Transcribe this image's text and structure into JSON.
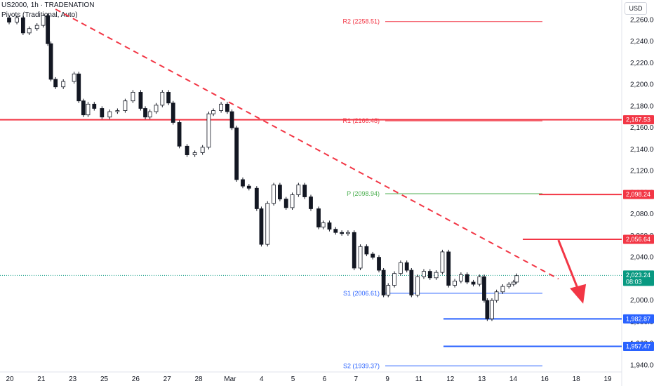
{
  "header": {
    "symbol": "US2000, 1h · TRADENATION",
    "indicator": "Pivots (Traditional, Auto)"
  },
  "currency": "USD",
  "chart_data": {
    "type": "candlestick",
    "y_axis": {
      "min": 1935,
      "max": 2272,
      "ticks": [
        1940,
        1960,
        1980,
        2000,
        2020,
        2040,
        2060,
        2080,
        2100,
        2120,
        2140,
        2160,
        2180,
        2200,
        2220,
        2240,
        2260
      ],
      "tick_labels": [
        "1,940.00",
        "1,960.00",
        "1,980.00",
        "2,000.00",
        "2,020.00",
        "2,040.00",
        "2,060.00",
        "2,080.00",
        "2,100.00",
        "2,120.00",
        "2,140.00",
        "2,160.00",
        "2,180.00",
        "2,200.00",
        "2,220.00",
        "2,240.00",
        "2,260.00"
      ]
    },
    "x_axis": {
      "labels": [
        "20",
        "21",
        "23",
        "25",
        "26",
        "27",
        "28",
        "Mar",
        "4",
        "5",
        "6",
        "7",
        "9",
        "11",
        "12",
        "13",
        "14",
        "16",
        "18",
        "19"
      ]
    },
    "price_series": [
      {
        "t": 0.0,
        "p": 2262
      },
      {
        "t": 0.5,
        "p": 2258
      },
      {
        "t": 1.0,
        "p": 2262
      },
      {
        "t": 1.4,
        "p": 2248
      },
      {
        "t": 1.8,
        "p": 2252
      },
      {
        "t": 2.3,
        "p": 2255
      },
      {
        "t": 2.7,
        "p": 2264
      },
      {
        "t": 3.0,
        "p": 2238
      },
      {
        "t": 3.2,
        "p": 2205
      },
      {
        "t": 3.5,
        "p": 2198
      },
      {
        "t": 4.0,
        "p": 2203
      },
      {
        "t": 4.7,
        "p": 2210
      },
      {
        "t": 5.0,
        "p": 2185
      },
      {
        "t": 5.3,
        "p": 2172
      },
      {
        "t": 5.6,
        "p": 2182
      },
      {
        "t": 6.0,
        "p": 2178
      },
      {
        "t": 6.5,
        "p": 2170
      },
      {
        "t": 7.0,
        "p": 2175
      },
      {
        "t": 7.5,
        "p": 2176
      },
      {
        "t": 8.0,
        "p": 2185
      },
      {
        "t": 8.5,
        "p": 2193
      },
      {
        "t": 9.0,
        "p": 2178
      },
      {
        "t": 9.3,
        "p": 2170
      },
      {
        "t": 9.6,
        "p": 2175
      },
      {
        "t": 10.0,
        "p": 2181
      },
      {
        "t": 10.4,
        "p": 2193
      },
      {
        "t": 10.8,
        "p": 2183
      },
      {
        "t": 11.1,
        "p": 2165
      },
      {
        "t": 11.5,
        "p": 2143
      },
      {
        "t": 12.0,
        "p": 2135
      },
      {
        "t": 12.5,
        "p": 2137
      },
      {
        "t": 13.0,
        "p": 2142
      },
      {
        "t": 13.4,
        "p": 2173
      },
      {
        "t": 13.7,
        "p": 2176
      },
      {
        "t": 14.2,
        "p": 2182
      },
      {
        "t": 14.6,
        "p": 2175
      },
      {
        "t": 14.9,
        "p": 2160
      },
      {
        "t": 15.2,
        "p": 2112
      },
      {
        "t": 15.6,
        "p": 2106
      },
      {
        "t": 16.0,
        "p": 2104
      },
      {
        "t": 16.5,
        "p": 2085
      },
      {
        "t": 16.8,
        "p": 2052
      },
      {
        "t": 17.2,
        "p": 2090
      },
      {
        "t": 17.6,
        "p": 2107
      },
      {
        "t": 18.0,
        "p": 2094
      },
      {
        "t": 18.4,
        "p": 2086
      },
      {
        "t": 18.8,
        "p": 2098
      },
      {
        "t": 19.2,
        "p": 2107
      },
      {
        "t": 19.6,
        "p": 2096
      },
      {
        "t": 20.0,
        "p": 2085
      },
      {
        "t": 20.5,
        "p": 2068
      },
      {
        "t": 20.8,
        "p": 2072
      },
      {
        "t": 21.2,
        "p": 2066
      },
      {
        "t": 21.6,
        "p": 2063
      },
      {
        "t": 22.0,
        "p": 2062
      },
      {
        "t": 22.4,
        "p": 2063
      },
      {
        "t": 22.8,
        "p": 2030
      },
      {
        "t": 23.2,
        "p": 2050
      },
      {
        "t": 23.6,
        "p": 2043
      },
      {
        "t": 24.0,
        "p": 2040
      },
      {
        "t": 24.4,
        "p": 2028
      },
      {
        "t": 24.7,
        "p": 2005
      },
      {
        "t": 25.0,
        "p": 2014
      },
      {
        "t": 25.4,
        "p": 2025
      },
      {
        "t": 25.8,
        "p": 2035
      },
      {
        "t": 26.2,
        "p": 2028
      },
      {
        "t": 26.5,
        "p": 2005
      },
      {
        "t": 26.9,
        "p": 2022
      },
      {
        "t": 27.3,
        "p": 2027
      },
      {
        "t": 27.7,
        "p": 2021
      },
      {
        "t": 28.1,
        "p": 2026
      },
      {
        "t": 28.5,
        "p": 2045
      },
      {
        "t": 28.9,
        "p": 2014
      },
      {
        "t": 29.3,
        "p": 2018
      },
      {
        "t": 29.7,
        "p": 2024
      },
      {
        "t": 30.1,
        "p": 2017
      },
      {
        "t": 30.5,
        "p": 2015
      },
      {
        "t": 30.9,
        "p": 2022
      },
      {
        "t": 31.2,
        "p": 2000
      },
      {
        "t": 31.4,
        "p": 1983
      },
      {
        "t": 31.7,
        "p": 2000
      },
      {
        "t": 32.0,
        "p": 2008
      },
      {
        "t": 32.4,
        "p": 2013
      },
      {
        "t": 32.8,
        "p": 2015
      },
      {
        "t": 33.1,
        "p": 2017
      },
      {
        "t": 33.3,
        "p": 2023
      }
    ],
    "levels": [
      {
        "name": "R2",
        "label": "R2 (2258.51)",
        "value": 2258.51,
        "color": "#f23645",
        "kind": "pivot"
      },
      {
        "name": "R1",
        "label": "R1 (2166.48)",
        "value": 2166.48,
        "color": "#f23645",
        "kind": "pivot"
      },
      {
        "name": "P",
        "label": "P (2098.94)",
        "value": 2098.94,
        "color": "#4caf50",
        "kind": "pivot"
      },
      {
        "name": "S1",
        "label": "S1 (2006.61)",
        "value": 2006.61,
        "color": "#2962ff",
        "kind": "pivot"
      },
      {
        "name": "S2",
        "label": "S2 (1939.37)",
        "value": 1939.37,
        "color": "#2962ff",
        "kind": "pivot"
      }
    ],
    "price_tags": [
      {
        "label": "2,167.53",
        "value": 2167.53,
        "color": "#f23645"
      },
      {
        "label": "2,098.24",
        "value": 2098.24,
        "color": "#f23645"
      },
      {
        "label": "2,056.64",
        "value": 2056.64,
        "color": "#f23645"
      },
      {
        "label": "2,023.24",
        "sub": "08:03",
        "value": 2023.24,
        "color": "#089981"
      },
      {
        "label": "1,982.87",
        "value": 1982.87,
        "color": "#2962ff"
      },
      {
        "label": "1,957.47",
        "value": 1957.47,
        "color": "#2962ff"
      }
    ],
    "trendline": {
      "from": {
        "t": 3.5,
        "p": 2270
      },
      "to": {
        "t": 36.0,
        "p": 2020
      },
      "style": "dashed",
      "color": "#f23645"
    },
    "forecast_arrow": {
      "from": {
        "t": 36.0,
        "p": 2056
      },
      "to": {
        "t": 37.6,
        "p": 1997
      },
      "color": "#f23645"
    }
  }
}
